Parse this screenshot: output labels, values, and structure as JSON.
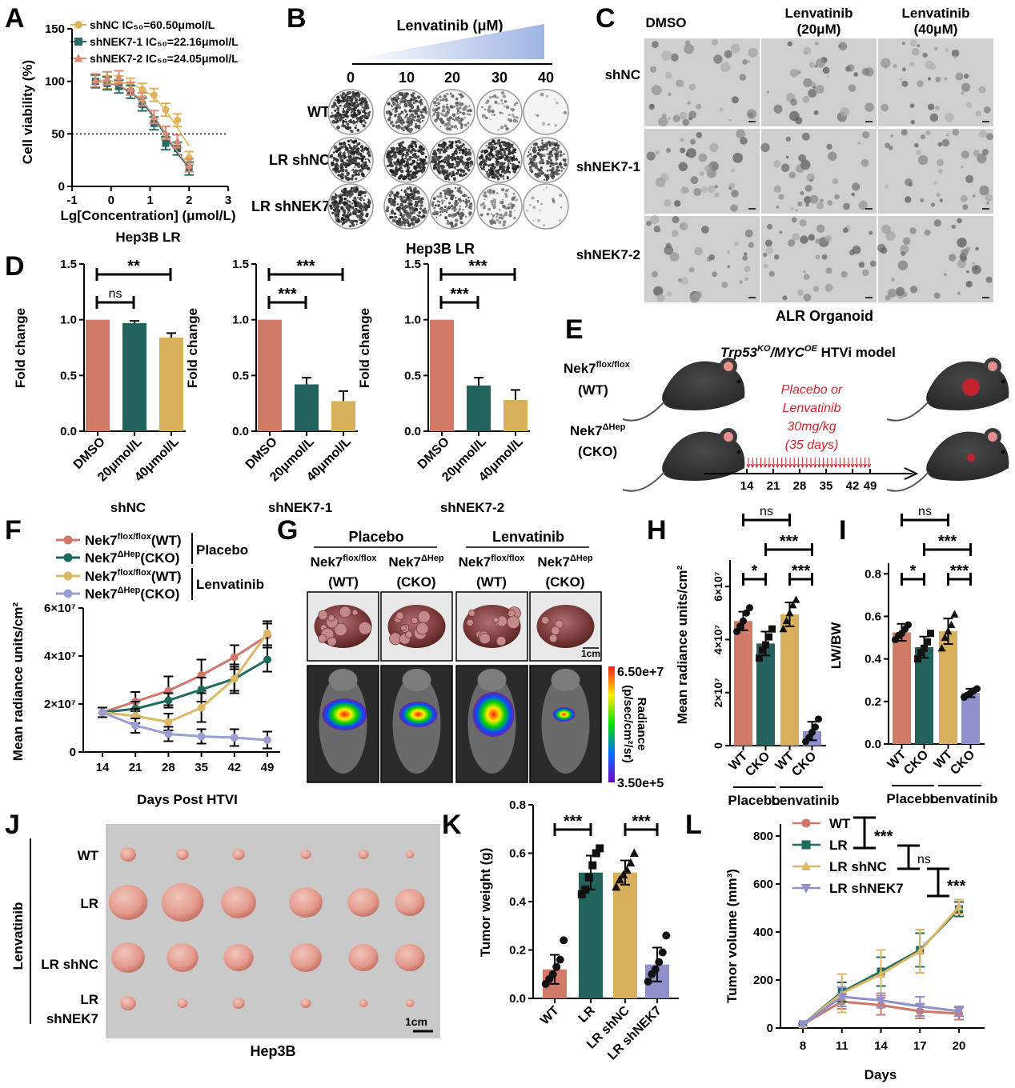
{
  "panelA": {
    "letter": "A",
    "legend": [
      "shNC IC₅₀=60.50μmol/L",
      "shNEK7-1 IC₅₀=22.16μmol/L",
      "shNEK7-2 IC₅₀=24.05μmol/L"
    ],
    "ylabel": "Cell viability (%)",
    "xlabel": "Lg[Concentration] (μmol/L)",
    "subtitle": "Hep3B LR",
    "xticks": [
      "-1",
      "0",
      "1",
      "2",
      "3"
    ],
    "yticks": [
      "0",
      "50",
      "100",
      "150"
    ]
  },
  "panelB": {
    "letter": "B",
    "title": "Lenvatinib (μM)",
    "conc": [
      "0",
      "10",
      "20",
      "30",
      "40"
    ],
    "rows": [
      "WT",
      "LR shNC",
      "LR shNEK7"
    ],
    "caption": "Hep3B LR",
    "density": [
      [
        0.92,
        0.7,
        0.45,
        0.2,
        0.04
      ],
      [
        0.94,
        0.95,
        0.9,
        0.92,
        0.7
      ],
      [
        0.92,
        0.8,
        0.55,
        0.3,
        0.08
      ]
    ]
  },
  "panelC": {
    "letter": "C",
    "cols": [
      "DMSO",
      "Lenvatinib\n(20μM)",
      "Lenvatinib\n(40μM)"
    ],
    "rows": [
      "shNC",
      "shNEK7-1",
      "shNEK7-2"
    ],
    "caption": "ALR Organoid"
  },
  "panelD": {
    "letter": "D",
    "ylabel": "Fold change",
    "yticks": [
      "0.0",
      "0.5",
      "1.0",
      "1.5"
    ],
    "cats": [
      "DMSO",
      "20μmol/L",
      "40μmol/L"
    ],
    "groups": [
      {
        "name": "shNC",
        "sig": [
          "ns",
          "**"
        ]
      },
      {
        "name": "shNEK7-1",
        "sig": [
          "***",
          "***"
        ]
      },
      {
        "name": "shNEK7-2",
        "sig": [
          "***",
          "***"
        ]
      }
    ]
  },
  "panelE": {
    "letter": "E",
    "title_it": "Trp53",
    "title_sup1": "KO",
    "title_mid": "/",
    "title_it2": "MYC",
    "title_sup2": "OE",
    "title_rest": " HTVi model",
    "wt1": "Nek7",
    "wt_sup": "flox/flox",
    "wt2": "(WT)",
    "cko1": "Nek7",
    "cko_sup": "ΔHep",
    "cko2": "(CKO)",
    "treatment": [
      "Placebo or",
      "Lenvatinib",
      "30mg/kg",
      "(35 days)"
    ],
    "days": [
      "14",
      "21",
      "28",
      "35",
      "42",
      "49"
    ]
  },
  "panelF": {
    "letter": "F",
    "legend": [
      "Nek7",
      "flox/flox",
      "(WT)",
      "Nek7",
      "ΔHep",
      "(CKO)",
      "Placebo",
      "Lenvatinib"
    ],
    "ylabel": "Mean radiance units/cm²",
    "xlabel": "Days Post HTVI",
    "yticks": [
      "0",
      "2×10⁷",
      "4×10⁷",
      "6×10⁷"
    ],
    "xticks": [
      "14",
      "21",
      "28",
      "35",
      "42",
      "49"
    ]
  },
  "panelG": {
    "letter": "G",
    "groups": [
      "Placebo",
      "Lenvatinib"
    ],
    "col_top": [
      "Nek7",
      "flox/flox",
      "Nek7",
      "ΔHep"
    ],
    "col_bot": [
      "(WT)",
      "(CKO)"
    ],
    "scale": "1cm",
    "cbar_max": "6.50e+7",
    "cbar_min": "3.50e+5",
    "cbar_label": "Radiance",
    "cbar_units": "(p/sec/cm²/sr)"
  },
  "panelH": {
    "letter": "H",
    "ylabel": "Mean radiance units/cm²",
    "yticks": [
      "0",
      "2×10⁷",
      "4×10⁷",
      "6×10⁷"
    ],
    "cats": [
      "WT",
      "CKO",
      "WT",
      "CKO"
    ],
    "groups": [
      "Placebo",
      "Lenvatinib"
    ],
    "sig": [
      "ns",
      "***",
      "*",
      "***"
    ]
  },
  "panelI": {
    "letter": "I",
    "ylabel": "LW/BW",
    "yticks": [
      "0.0",
      "0.2",
      "0.4",
      "0.6",
      "0.8"
    ],
    "cats": [
      "WT",
      "CKO",
      "WT",
      "CKO"
    ],
    "groups": [
      "Placebo",
      "Lenvatinib"
    ],
    "sig": [
      "ns",
      "***",
      "*",
      "***"
    ]
  },
  "panelJ": {
    "letter": "J",
    "side": "Lenvatinib",
    "rows": [
      "WT",
      "LR",
      "LR shNC",
      "LR",
      "shNEK7"
    ],
    "scale": "1cm",
    "caption": "Hep3B"
  },
  "panelK": {
    "letter": "K",
    "ylabel": "Tumor weight (g)",
    "yticks": [
      "0.0",
      "0.2",
      "0.4",
      "0.6",
      "0.8"
    ],
    "cats": [
      "WT",
      "LR",
      "LR shNC",
      "LR shNEK7"
    ],
    "sig": [
      "***",
      "***"
    ]
  },
  "panelL": {
    "letter": "L",
    "legend": [
      "WT",
      "LR",
      "LR shNC",
      "LR shNEK7"
    ],
    "sig": [
      "***",
      "ns",
      "***"
    ],
    "ylabel": "Tumor volume (mm³)",
    "xlabel": "Days",
    "yticks": [
      "0",
      "200",
      "400",
      "600",
      "800"
    ],
    "xticks": [
      "8",
      "11",
      "14",
      "17",
      "20"
    ]
  },
  "chart_data": [
    {
      "type": "scatter",
      "panel": "A",
      "xlabel": "Lg[Concentration] (μmol/L)",
      "ylabel": "Cell viability (%)",
      "xlim": [
        -1,
        3
      ],
      "ylim": [
        0,
        150
      ],
      "reference_line_y": 50,
      "x": [
        -0.4,
        -0.1,
        0.2,
        0.5,
        0.8,
        1.1,
        1.4,
        1.7,
        2.0
      ],
      "series": [
        {
          "name": "shNC",
          "color": "#e0b358",
          "values": [
            100,
            99,
            99,
            97,
            92,
            87,
            73,
            63,
            27
          ],
          "ic50": 60.5
        },
        {
          "name": "shNEK7-1",
          "color": "#2a6b66",
          "values": [
            100,
            98,
            95,
            90,
            78,
            60,
            41,
            36,
            17
          ],
          "ic50": 22.16
        },
        {
          "name": "shNEK7-2",
          "color": "#d98b75",
          "values": [
            101,
            103,
            104,
            93,
            83,
            66,
            51,
            43,
            20
          ],
          "ic50": 24.05
        }
      ]
    },
    {
      "type": "bar",
      "panel": "D",
      "ylabel": "Fold change",
      "ylim": [
        0,
        1.5
      ],
      "categories": [
        "DMSO",
        "20μmol/L",
        "40μmol/L"
      ],
      "colors": [
        "#d07a67",
        "#22635d",
        "#d8b05a"
      ],
      "series": [
        {
          "name": "shNC",
          "values": [
            1.0,
            0.97,
            0.84
          ],
          "err": [
            0,
            0.02,
            0.04
          ]
        },
        {
          "name": "shNEK7-1",
          "values": [
            1.0,
            0.42,
            0.27
          ],
          "err": [
            0,
            0.06,
            0.09
          ]
        },
        {
          "name": "shNEK7-2",
          "values": [
            1.0,
            0.41,
            0.28
          ],
          "err": [
            0,
            0.07,
            0.09
          ]
        }
      ]
    },
    {
      "type": "line",
      "panel": "F",
      "xlabel": "Days Post HTVI",
      "ylabel": "Mean radiance units/cm²",
      "x": [
        14,
        21,
        28,
        35,
        42,
        49
      ],
      "ylim": [
        0,
        60000000
      ],
      "series": [
        {
          "name": "Nek7 flox/flox (WT) Placebo",
          "color": "#d0766a",
          "values": [
            16500000,
            21000000,
            25500000,
            32000000,
            39500000,
            48500000
          ],
          "err": [
            2000000,
            4000000,
            6000000,
            6500000,
            5000000,
            5000000
          ]
        },
        {
          "name": "Nek7 ΔHep (CKO) Placebo",
          "color": "#1f6a5e",
          "values": [
            16500000,
            18000000,
            21500000,
            26000000,
            30500000,
            38500000
          ],
          "err": [
            2000000,
            3000000,
            3000000,
            5000000,
            5000000,
            5000000
          ]
        },
        {
          "name": "Nek7 flox/flox (WT) Lenvatinib",
          "color": "#dcb868",
          "values": [
            16500000,
            15000000,
            12500000,
            18500000,
            30500000,
            49500000
          ],
          "err": [
            2000000,
            3000000,
            3500000,
            6000000,
            6000000,
            5000000
          ]
        },
        {
          "name": "Nek7 ΔHep (CKO) Lenvatinib",
          "color": "#9b9ed2",
          "values": [
            16500000,
            11000000,
            7500000,
            6500000,
            6000000,
            5000000
          ],
          "err": [
            2000000,
            3000000,
            3000000,
            3000000,
            3500000,
            3500000
          ]
        }
      ]
    },
    {
      "type": "bar",
      "panel": "H",
      "ylabel": "Mean radiance units/cm²",
      "ylim": [
        0,
        70000000
      ],
      "categories": [
        "WT",
        "CKO",
        "WT",
        "CKO"
      ],
      "colors": [
        "#d07a67",
        "#22635d",
        "#d8b05a",
        "#8f90cc"
      ],
      "values": [
        47000000,
        38500000,
        49500000,
        5500000
      ],
      "err": [
        3500000,
        4500000,
        4500000,
        3500000
      ],
      "points": [
        [
          43000000,
          45000000,
          47000000,
          50000000,
          52000000
        ],
        [
          33000000,
          36000000,
          38000000,
          41000000,
          44000000
        ],
        [
          44000000,
          47000000,
          50000000,
          53000000,
          55000000
        ],
        [
          1500000,
          3000000,
          5000000,
          7000000,
          10000000
        ]
      ]
    },
    {
      "type": "bar",
      "panel": "I",
      "ylabel": "LW/BW",
      "ylim": [
        0,
        0.85
      ],
      "categories": [
        "WT",
        "CKO",
        "WT",
        "CKO"
      ],
      "colors": [
        "#d07a67",
        "#22635d",
        "#d8b05a",
        "#8f90cc"
      ],
      "values": [
        0.525,
        0.455,
        0.53,
        0.24
      ],
      "err": [
        0.04,
        0.05,
        0.06,
        0.02
      ],
      "points": [
        [
          0.49,
          0.51,
          0.52,
          0.54,
          0.56
        ],
        [
          0.4,
          0.43,
          0.45,
          0.48,
          0.52
        ],
        [
          0.45,
          0.5,
          0.53,
          0.56,
          0.61
        ],
        [
          0.22,
          0.23,
          0.24,
          0.25,
          0.26
        ]
      ]
    },
    {
      "type": "bar",
      "panel": "K",
      "ylabel": "Tumor weight (g)",
      "ylim": [
        0,
        0.8
      ],
      "categories": [
        "WT",
        "LR",
        "LR shNC",
        "LR shNEK7"
      ],
      "colors": [
        "#d07a67",
        "#22635d",
        "#d8b05a",
        "#8f90cc"
      ],
      "values": [
        0.12,
        0.52,
        0.52,
        0.14
      ],
      "err": [
        0.06,
        0.07,
        0.05,
        0.07
      ],
      "points": [
        [
          0.06,
          0.08,
          0.1,
          0.13,
          0.16,
          0.24
        ],
        [
          0.43,
          0.45,
          0.5,
          0.55,
          0.6,
          0.62
        ],
        [
          0.46,
          0.49,
          0.51,
          0.53,
          0.56,
          0.6
        ],
        [
          0.07,
          0.1,
          0.12,
          0.15,
          0.19,
          0.26
        ]
      ]
    },
    {
      "type": "line",
      "panel": "L",
      "xlabel": "Days",
      "ylabel": "Tumor volume (mm³)",
      "x": [
        8,
        11,
        14,
        17,
        20
      ],
      "ylim": [
        0,
        850
      ],
      "series": [
        {
          "name": "WT",
          "color": "#d0766a",
          "marker": "circle",
          "values": [
            15,
            110,
            95,
            70,
            60
          ],
          "err": [
            5,
            30,
            40,
            30,
            25
          ]
        },
        {
          "name": "LR",
          "color": "#1f6a5e",
          "marker": "square",
          "values": [
            15,
            150,
            235,
            325,
            495
          ],
          "err": [
            5,
            40,
            60,
            70,
            30
          ]
        },
        {
          "name": "LR shNC",
          "color": "#dcb868",
          "marker": "triangle",
          "values": [
            15,
            145,
            225,
            320,
            505
          ],
          "err": [
            5,
            80,
            100,
            90,
            30
          ]
        },
        {
          "name": "LR shNEK7",
          "color": "#8f90cc",
          "marker": "triangle-down",
          "values": [
            15,
            130,
            115,
            90,
            70
          ],
          "err": [
            5,
            40,
            30,
            40,
            20
          ]
        }
      ]
    }
  ]
}
